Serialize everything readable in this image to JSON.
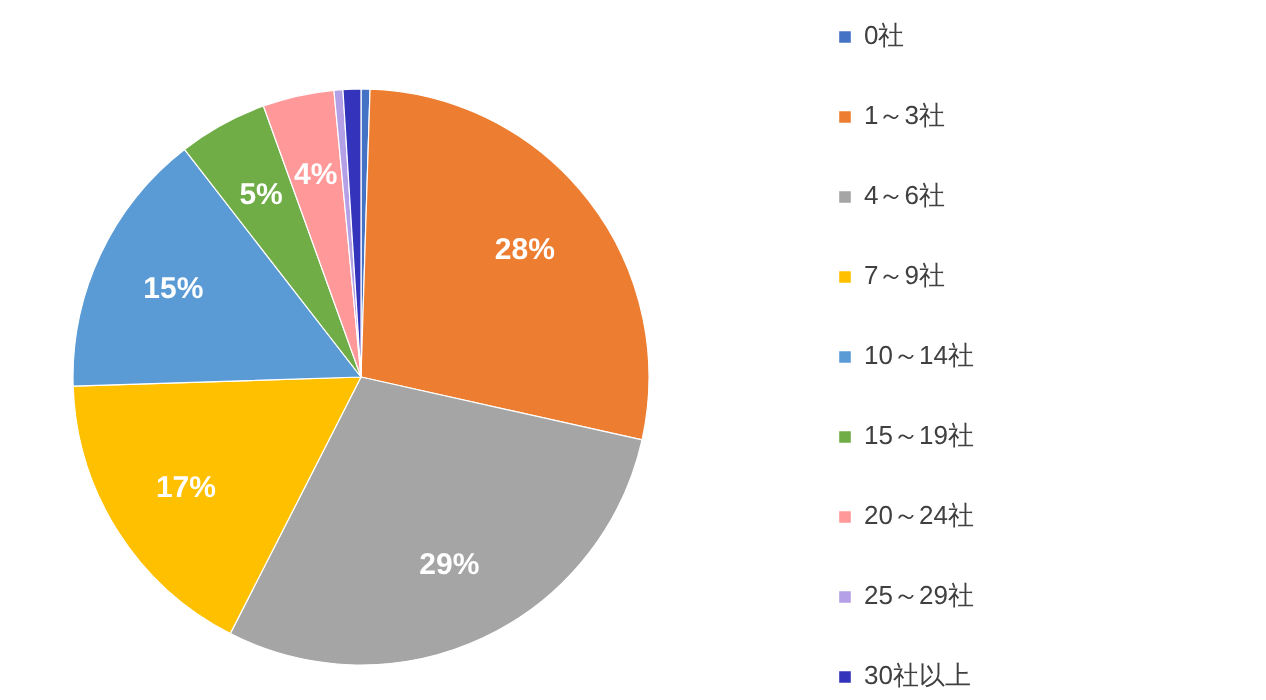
{
  "chart_data": {
    "type": "pie",
    "categories": [
      "0社",
      "1～3社",
      "4～6社",
      "7～9社",
      "10～14社",
      "15～19社",
      "20～24社",
      "25～29社",
      "30社以上"
    ],
    "values": [
      0.5,
      28,
      29,
      17,
      15,
      5,
      4,
      0.5,
      1
    ],
    "colors": [
      "#4472c4",
      "#ed7d31",
      "#a5a5a5",
      "#ffc000",
      "#5b9bd5",
      "#70ad47",
      "#ff9999",
      "#b4a0e6",
      "#3333bb"
    ],
    "value_labels": [
      null,
      "28%",
      "29%",
      "17%",
      "15%",
      "5%",
      "4%",
      null,
      null
    ],
    "legend": "right"
  }
}
